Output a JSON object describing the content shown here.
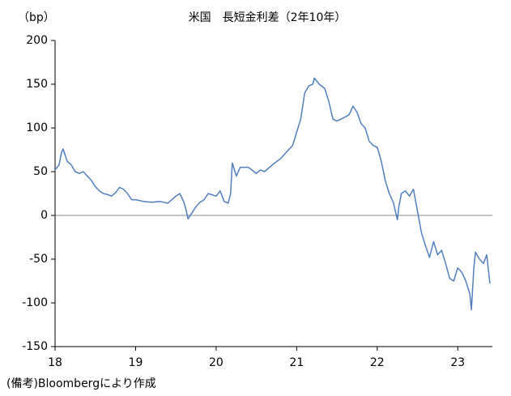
{
  "chart_data": {
    "type": "line",
    "title": "米国　長短金利差（2年10年）",
    "y_label": "（bp）",
    "note": "(備考)Bloombergにより作成",
    "xlim": [
      18,
      23.43
    ],
    "xticks": [
      18,
      19,
      20,
      21,
      22,
      23
    ],
    "ylim": [
      -150,
      200
    ],
    "yticks": [
      -150,
      -100,
      -50,
      0,
      50,
      100,
      150,
      200
    ],
    "series": [
      {
        "color": "#4f7fbf",
        "x": [
          18.0,
          18.05,
          18.08,
          18.1,
          18.15,
          18.2,
          18.25,
          18.3,
          18.35,
          18.4,
          18.45,
          18.5,
          18.55,
          18.6,
          18.65,
          18.7,
          18.75,
          18.8,
          18.85,
          18.9,
          18.95,
          19.0,
          19.1,
          19.2,
          19.3,
          19.4,
          19.5,
          19.55,
          19.6,
          19.63,
          19.65,
          19.7,
          19.75,
          19.8,
          19.85,
          19.9,
          20.0,
          20.05,
          20.1,
          20.15,
          20.18,
          20.2,
          20.25,
          20.3,
          20.4,
          20.5,
          20.55,
          20.6,
          20.7,
          20.8,
          20.9,
          20.95,
          21.0,
          21.05,
          21.1,
          21.15,
          21.2,
          21.22,
          21.28,
          21.35,
          21.4,
          21.45,
          21.5,
          21.55,
          21.65,
          21.7,
          21.75,
          21.8,
          21.85,
          21.9,
          21.95,
          22.0,
          22.05,
          22.1,
          22.15,
          22.2,
          22.25,
          22.27,
          22.3,
          22.35,
          22.4,
          22.45,
          22.5,
          22.55,
          22.6,
          22.65,
          22.7,
          22.75,
          22.8,
          22.85,
          22.9,
          22.95,
          23.0,
          23.05,
          23.1,
          23.15,
          23.17,
          23.2,
          23.22,
          23.27,
          23.32,
          23.36,
          23.4
        ],
        "values": [
          52,
          58,
          72,
          76,
          62,
          58,
          50,
          48,
          50,
          45,
          40,
          33,
          28,
          25,
          24,
          22,
          26,
          32,
          30,
          25,
          18,
          18,
          16,
          15,
          16,
          14,
          22,
          25,
          15,
          5,
          -4,
          3,
          10,
          15,
          18,
          25,
          22,
          28,
          16,
          14,
          25,
          60,
          45,
          55,
          55,
          48,
          52,
          50,
          58,
          65,
          75,
          80,
          95,
          110,
          140,
          148,
          150,
          157,
          150,
          145,
          130,
          110,
          108,
          110,
          115,
          125,
          118,
          105,
          100,
          85,
          80,
          78,
          62,
          40,
          25,
          15,
          -5,
          10,
          25,
          28,
          22,
          30,
          5,
          -20,
          -35,
          -48,
          -30,
          -45,
          -40,
          -55,
          -72,
          -75,
          -60,
          -65,
          -75,
          -90,
          -108,
          -60,
          -42,
          -50,
          -55,
          -45,
          -78
        ]
      }
    ]
  }
}
